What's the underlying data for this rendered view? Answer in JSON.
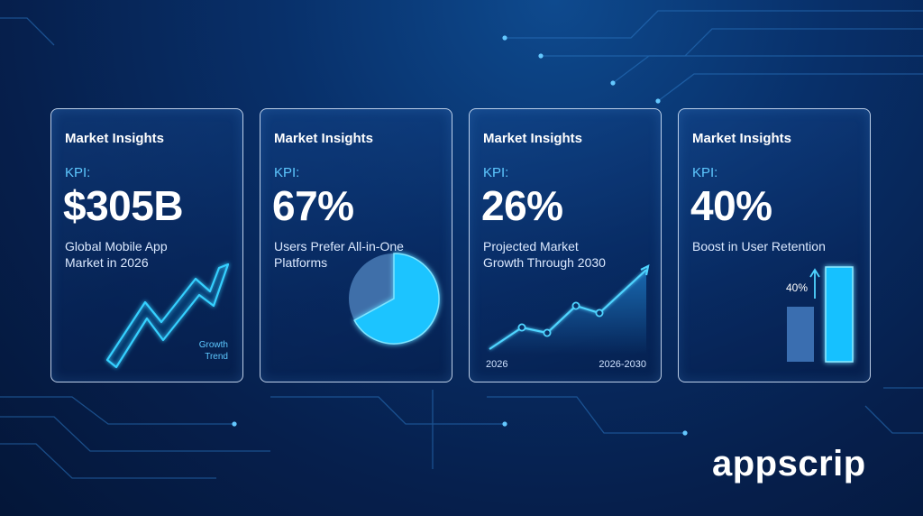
{
  "cards": [
    {
      "title": "Market Insights",
      "kpi_label": "KPI:",
      "value": "$305B",
      "description": "Global Mobile App Market in 2026",
      "chart_label": "Growth Trend"
    },
    {
      "title": "Market Insights",
      "kpi_label": "KPI:",
      "value": "67%",
      "description": "Users Prefer All-in-One Platforms",
      "pie_share": 0.67
    },
    {
      "title": "Market Insights",
      "kpi_label": "KPI:",
      "value": "26%",
      "description": "Projected Market Growth Through 2030",
      "axis_start": "2026",
      "axis_end": "2026-2030"
    },
    {
      "title": "Market Insights",
      "kpi_label": "KPI:",
      "value": "40%",
      "description": "Boost in User Retention",
      "bar_label": "40%"
    }
  ],
  "brand": {
    "name": "appscrip"
  },
  "colors": {
    "accent": "#5ec8ff",
    "glow": "#27c4ff",
    "background": "#061f4c"
  }
}
